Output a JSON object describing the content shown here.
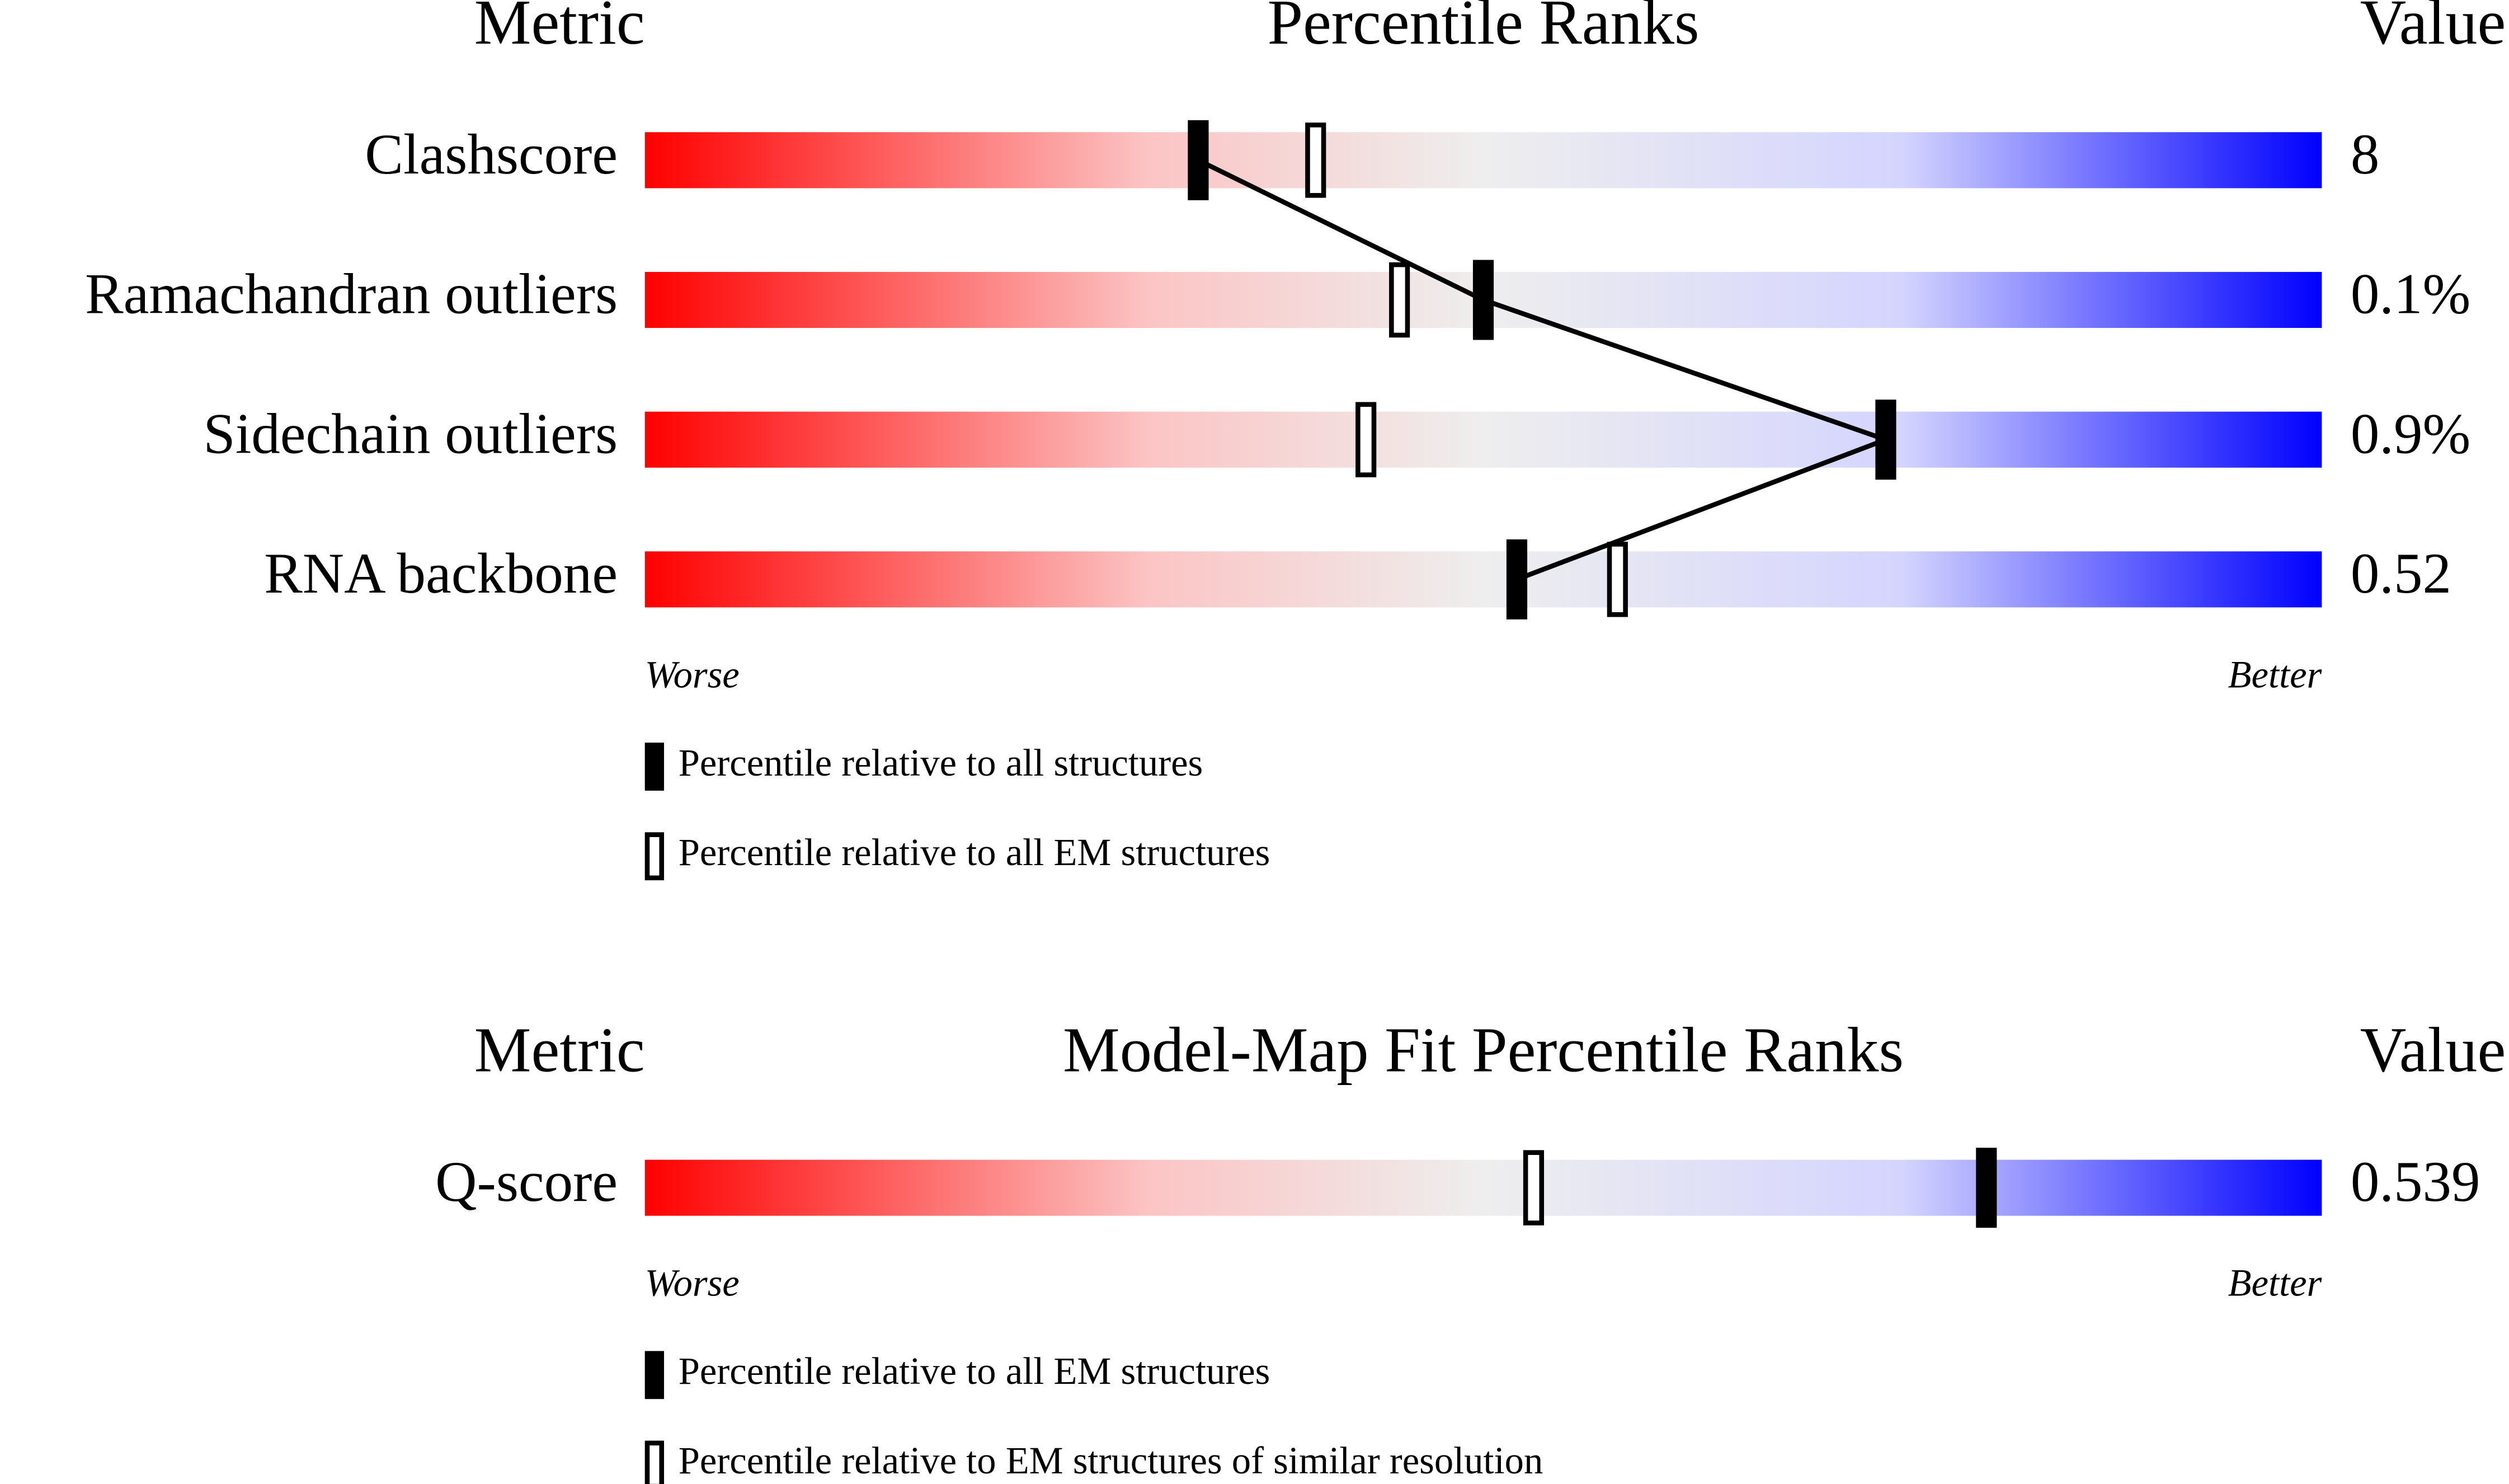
{
  "chart_data": [
    {
      "type": "percentile",
      "header_metric": "Metric",
      "title": "Percentile Ranks",
      "header_value": "Value",
      "categories": [
        "Clashscore",
        "Ramachandran outliers",
        "Sidechain outliers",
        "RNA backbone"
      ],
      "series": [
        {
          "name": "Percentile relative to all structures",
          "style": "filled",
          "color": "#000000",
          "values": [
            33,
            50,
            74,
            52
          ]
        },
        {
          "name": "Percentile relative to all EM structures",
          "style": "hollow",
          "color": "#000000",
          "values": [
            40,
            45,
            43,
            58
          ]
        }
      ],
      "value_texts": [
        "8",
        "0.1%",
        "0.9%",
        "0.52"
      ],
      "xlim": [
        0,
        100
      ],
      "worse_label": "Worse",
      "better_label": "Better",
      "connected": true
    },
    {
      "type": "percentile",
      "header_metric": "Metric",
      "title": "Model-Map Fit Percentile Ranks",
      "header_value": "Value",
      "categories": [
        "Q-score"
      ],
      "series": [
        {
          "name": "Percentile relative to all EM structures",
          "style": "filled",
          "color": "#000000",
          "values": [
            80
          ]
        },
        {
          "name": "Percentile relative to EM structures of similar resolution",
          "style": "hollow",
          "color": "#000000",
          "values": [
            53
          ]
        }
      ],
      "value_texts": [
        "0.539"
      ],
      "xlim": [
        0,
        100
      ],
      "worse_label": "Worse",
      "better_label": "Better",
      "connected": false
    }
  ]
}
